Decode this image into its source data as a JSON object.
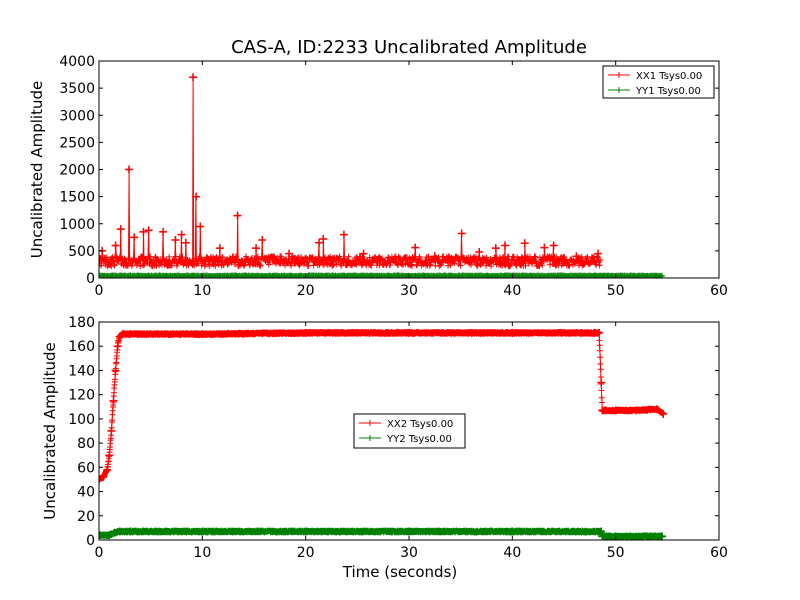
{
  "figure": {
    "title": "CAS-A, ID:2233 Uncalibrated Amplitude"
  },
  "chart_data": [
    {
      "type": "line",
      "title": "CAS-A, ID:2233 Uncalibrated Amplitude",
      "xlabel": "",
      "ylabel": "Uncalibrated Amplitude",
      "xlim": [
        0,
        60
      ],
      "ylim": [
        0,
        4000
      ],
      "xticks": [
        "0",
        "10",
        "20",
        "30",
        "40",
        "50",
        "60"
      ],
      "yticks": [
        "0",
        "500",
        "1000",
        "1500",
        "2000",
        "2500",
        "3000",
        "3500",
        "4000"
      ],
      "grid": false,
      "legend_position": "upper-right",
      "series": [
        {
          "name": "XX1 Tsys0.00",
          "color": "#ff0000",
          "marker": "plus",
          "x_range": [
            0,
            48.5
          ],
          "baseline_band": [
            120,
            400
          ],
          "spikes": [
            {
              "x": 0.3,
              "y": 500
            },
            {
              "x": 1.6,
              "y": 600
            },
            {
              "x": 2.1,
              "y": 900
            },
            {
              "x": 2.9,
              "y": 2000
            },
            {
              "x": 3.4,
              "y": 750
            },
            {
              "x": 4.3,
              "y": 850
            },
            {
              "x": 4.8,
              "y": 880
            },
            {
              "x": 6.2,
              "y": 850
            },
            {
              "x": 7.4,
              "y": 700
            },
            {
              "x": 8.0,
              "y": 800
            },
            {
              "x": 8.4,
              "y": 650
            },
            {
              "x": 9.1,
              "y": 3700
            },
            {
              "x": 9.4,
              "y": 1500
            },
            {
              "x": 9.8,
              "y": 950
            },
            {
              "x": 11.7,
              "y": 550
            },
            {
              "x": 13.4,
              "y": 1150
            },
            {
              "x": 15.2,
              "y": 550
            },
            {
              "x": 15.8,
              "y": 700
            },
            {
              "x": 18.4,
              "y": 450
            },
            {
              "x": 21.3,
              "y": 650
            },
            {
              "x": 21.7,
              "y": 720
            },
            {
              "x": 23.7,
              "y": 800
            },
            {
              "x": 25.6,
              "y": 450
            },
            {
              "x": 30.6,
              "y": 560
            },
            {
              "x": 32.5,
              "y": 400
            },
            {
              "x": 35.1,
              "y": 820
            },
            {
              "x": 36.8,
              "y": 480
            },
            {
              "x": 38.4,
              "y": 550
            },
            {
              "x": 39.3,
              "y": 600
            },
            {
              "x": 41.2,
              "y": 640
            },
            {
              "x": 43.1,
              "y": 560
            },
            {
              "x": 44.0,
              "y": 600
            },
            {
              "x": 46.2,
              "y": 400
            },
            {
              "x": 48.3,
              "y": 450
            }
          ]
        },
        {
          "name": "YY1 Tsys0.00",
          "color": "#008000",
          "marker": "plus",
          "x_range": [
            0,
            54.5
          ],
          "level": 40
        }
      ]
    },
    {
      "type": "line",
      "title": "",
      "xlabel": "Time (seconds)",
      "ylabel": "Uncalibrated Amplitude",
      "xlim": [
        0,
        60
      ],
      "ylim": [
        0,
        180
      ],
      "xticks": [
        "0",
        "10",
        "20",
        "30",
        "40",
        "50",
        "60"
      ],
      "yticks": [
        "0",
        "20",
        "40",
        "60",
        "80",
        "100",
        "120",
        "140",
        "160",
        "180"
      ],
      "grid": false,
      "legend_position": "center",
      "series": [
        {
          "name": "XX2 Tsys0.00",
          "color": "#ff0000",
          "marker": "plus",
          "x": [
            0.0,
            0.4,
            0.8,
            1.0,
            1.2,
            1.4,
            1.6,
            1.8,
            2.0,
            2.3,
            3.0,
            10.0,
            20.0,
            30.0,
            40.0,
            48.0,
            48.4,
            48.6,
            48.7,
            49.0,
            50.0,
            52.0,
            54.0,
            54.6
          ],
          "y": [
            50,
            52,
            58,
            70,
            90,
            115,
            140,
            160,
            168,
            170,
            170,
            170,
            171,
            171,
            171,
            171,
            171,
            130,
            107,
            107,
            107,
            107,
            108,
            104
          ]
        },
        {
          "name": "YY2 Tsys0.00",
          "color": "#008000",
          "marker": "plus",
          "x": [
            0.0,
            1.0,
            1.5,
            2.0,
            3.0,
            10.0,
            20.0,
            30.0,
            40.0,
            48.6,
            48.7,
            50.0,
            54.5
          ],
          "y": [
            4,
            4,
            6,
            7,
            7,
            7,
            7,
            7,
            7,
            7,
            3,
            3,
            3
          ]
        }
      ]
    }
  ]
}
